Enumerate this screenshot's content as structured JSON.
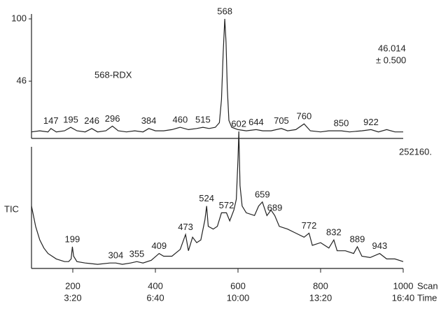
{
  "chart_data": [
    {
      "type": "line",
      "label": "568-RDX",
      "annotations": [
        "46.014",
        "± 0.500"
      ],
      "x": [
        100,
        120,
        140,
        147,
        160,
        180,
        195,
        210,
        230,
        246,
        260,
        280,
        296,
        310,
        330,
        350,
        370,
        384,
        400,
        420,
        440,
        460,
        480,
        500,
        515,
        530,
        545,
        555,
        560,
        564,
        568,
        571,
        574,
        578,
        585,
        600,
        620,
        644,
        660,
        680,
        705,
        720,
        740,
        760,
        775,
        800,
        820,
        850,
        870,
        900,
        922,
        940,
        960,
        980,
        1000
      ],
      "values": [
        2,
        3,
        2,
        5,
        2,
        3,
        6,
        3,
        2,
        5,
        2,
        3,
        7,
        3,
        2,
        3,
        2,
        5,
        3,
        3,
        4,
        6,
        4,
        5,
        6,
        5,
        6,
        10,
        30,
        70,
        100,
        80,
        40,
        12,
        6,
        4,
        3,
        4,
        3,
        3,
        5,
        3,
        4,
        9,
        3,
        2,
        3,
        3,
        2,
        3,
        4,
        2,
        4,
        2,
        2
      ],
      "peaks": [
        147,
        195,
        246,
        296,
        384,
        460,
        515,
        568,
        644,
        705,
        760,
        850,
        922
      ],
      "xlim": [
        100,
        1000
      ],
      "ylim": [
        0,
        100
      ],
      "yticks": [
        46,
        100
      ],
      "color": "#222222"
    },
    {
      "type": "line",
      "label": "TIC",
      "annotations": [
        "252160."
      ],
      "x": [
        100,
        110,
        120,
        130,
        140,
        150,
        160,
        170,
        180,
        190,
        196,
        199,
        202,
        210,
        230,
        260,
        290,
        304,
        320,
        340,
        355,
        370,
        390,
        409,
        420,
        440,
        460,
        473,
        480,
        490,
        500,
        510,
        520,
        524,
        528,
        540,
        550,
        560,
        572,
        580,
        590,
        596,
        600,
        602,
        605,
        610,
        620,
        640,
        650,
        659,
        670,
        680,
        689,
        700,
        720,
        740,
        760,
        772,
        780,
        800,
        820,
        832,
        840,
        860,
        880,
        889,
        900,
        920,
        943,
        960,
        980,
        1000
      ],
      "values": [
        45,
        30,
        20,
        14,
        10,
        8,
        6,
        5,
        4,
        4,
        6,
        15,
        8,
        4,
        3,
        2,
        3,
        3,
        2,
        3,
        4,
        3,
        5,
        10,
        8,
        8,
        13,
        24,
        12,
        22,
        18,
        20,
        35,
        45,
        30,
        28,
        30,
        40,
        40,
        34,
        42,
        50,
        80,
        100,
        60,
        45,
        40,
        38,
        45,
        48,
        38,
        42,
        38,
        30,
        28,
        25,
        22,
        25,
        16,
        18,
        14,
        20,
        12,
        12,
        10,
        15,
        8,
        7,
        10,
        6,
        6,
        4
      ],
      "peaks": [
        199,
        304,
        355,
        409,
        473,
        524,
        572,
        602,
        659,
        689,
        772,
        832,
        889,
        943
      ],
      "xlim": [
        100,
        1000
      ],
      "ylim": [
        0,
        100
      ],
      "xticks": [
        200,
        400,
        600,
        800,
        1000
      ],
      "time_ticks": [
        {
          "value": 200,
          "label": "3:20"
        },
        {
          "value": 400,
          "label": "6:40"
        },
        {
          "value": 600,
          "label": "10:00"
        },
        {
          "value": 800,
          "label": "13:20"
        },
        {
          "value": 1000,
          "label": "16:40"
        }
      ],
      "xlabel": "Scan",
      "x2label": "Time",
      "color": "#222222"
    }
  ]
}
